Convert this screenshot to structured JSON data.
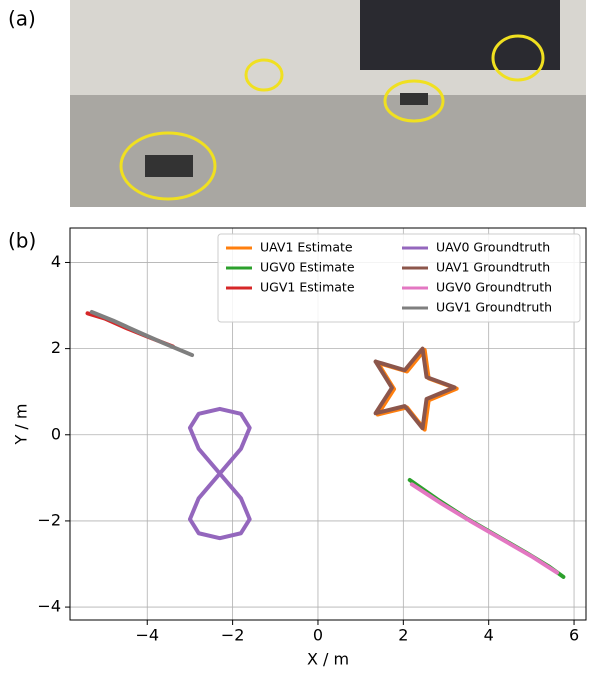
{
  "panel_labels": [
    "(a)",
    "(b)"
  ],
  "chart_data": {
    "type": "line",
    "xlabel": "X / m",
    "ylabel": "Y / m",
    "xlim": [
      -5.81,
      6.28
    ],
    "ylim": [
      -4.3,
      4.8
    ],
    "xticks": [
      {
        "value": -4,
        "label": "−4"
      },
      {
        "value": -2,
        "label": "−2"
      },
      0,
      2,
      4,
      6
    ],
    "yticks": [
      {
        "value": -4,
        "label": "−4"
      },
      {
        "value": -2,
        "label": "−2"
      },
      0,
      2,
      4
    ],
    "grid": true,
    "legend": "upper right",
    "series": [
      {
        "name": "UAV1 Estimate",
        "color": "#ff7f0e",
        "x": [
          1.4,
          2.085,
          2.5,
          2.594,
          3.25,
          2.594,
          2.5,
          2.085,
          1.4,
          1.783,
          1.4
        ],
        "y": [
          1.67,
          1.47,
          1.97,
          1.309,
          1.07,
          0.8,
          0.12,
          0.635,
          0.47,
          1.061,
          1.67
        ]
      },
      {
        "name": "UGV0 Estimate",
        "color": "#2ca02c",
        "x": [
          2.15,
          2.8,
          3.5,
          4.2,
          4.9,
          5.4,
          5.75
        ],
        "y": [
          -1.05,
          -1.5,
          -1.95,
          -2.35,
          -2.75,
          -3.05,
          -3.3
        ]
      },
      {
        "name": "UGV1 Estimate",
        "color": "#d62728",
        "x": [
          -5.4,
          -5.0,
          -4.5,
          -4.0,
          -3.4
        ],
        "y": [
          2.82,
          2.7,
          2.48,
          2.28,
          2.05
        ]
      },
      {
        "name": "UAV0 Groundtruth",
        "color": "#9467bd",
        "x": [
          -2.3,
          -1.805,
          -1.6,
          -1.805,
          -2.3,
          -2.795,
          -3.0,
          -2.795,
          -2.3,
          -1.805,
          -1.6,
          -1.805,
          -2.3,
          -2.795,
          -3.0,
          -2.795,
          -2.3
        ],
        "y": [
          -0.9,
          -0.326,
          0.161,
          0.486,
          0.6,
          0.486,
          0.161,
          -0.326,
          -0.9,
          -1.474,
          -1.961,
          -2.286,
          -2.4,
          -2.286,
          -1.961,
          -1.474,
          -0.9
        ]
      },
      {
        "name": "UAV1 Groundtruth",
        "color": "#8c564b",
        "x": [
          1.35,
          2.035,
          2.45,
          2.544,
          3.2,
          2.544,
          2.45,
          2.035,
          1.35,
          1.733,
          1.35
        ],
        "y": [
          1.7,
          1.5,
          2.0,
          1.339,
          1.1,
          0.83,
          0.15,
          0.665,
          0.5,
          1.091,
          1.7
        ]
      },
      {
        "name": "UGV0 Groundtruth",
        "color": "#e377c2",
        "x": [
          2.2,
          2.9,
          3.6,
          4.3,
          5.0,
          5.6
        ],
        "y": [
          -1.15,
          -1.6,
          -2.02,
          -2.42,
          -2.82,
          -3.2
        ]
      },
      {
        "name": "UGV1 Groundtruth",
        "color": "#7f7f7f",
        "x": [
          -5.3,
          -4.8,
          -4.2,
          -3.6,
          -2.95
        ],
        "y": [
          2.85,
          2.65,
          2.38,
          2.12,
          1.85
        ]
      }
    ]
  }
}
